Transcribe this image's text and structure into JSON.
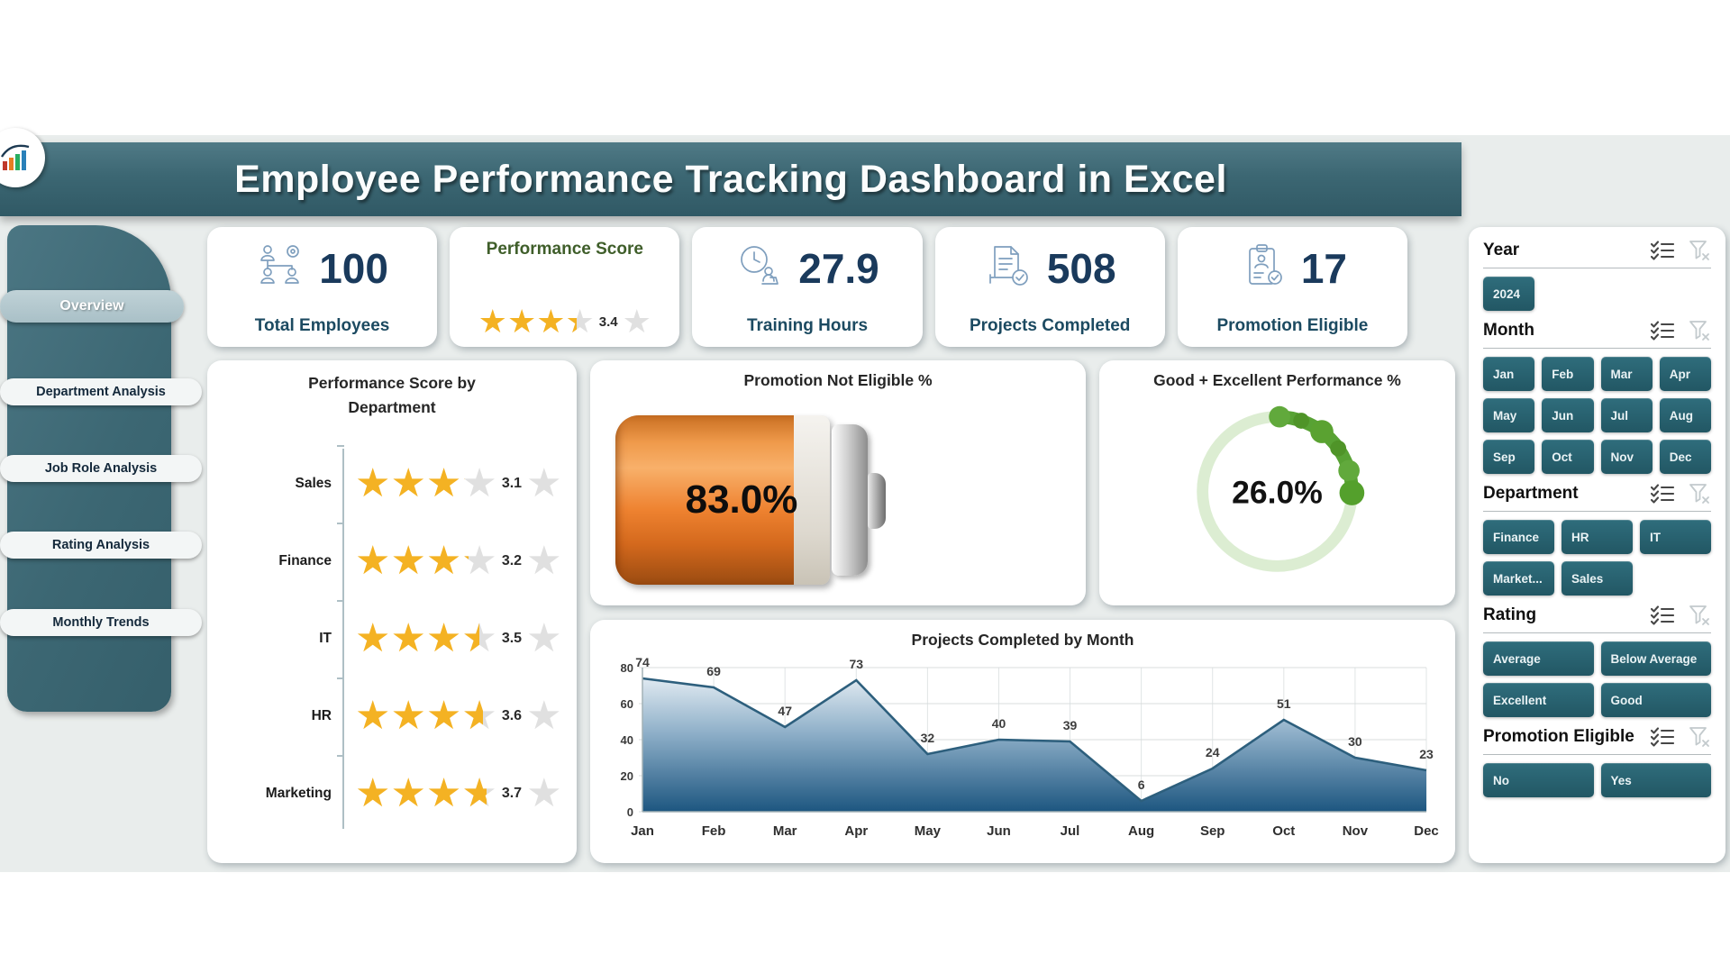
{
  "title": "Employee Performance Tracking Dashboard in Excel",
  "sidebar": {
    "items": [
      {
        "label": "Overview",
        "active": true
      },
      {
        "label": "Department Analysis",
        "active": false
      },
      {
        "label": "Job Role Analysis",
        "active": false
      },
      {
        "label": "Rating Analysis",
        "active": false
      },
      {
        "label": "Monthly Trends",
        "active": false
      }
    ]
  },
  "kpis": [
    {
      "icon": "people-network-icon",
      "value": "100",
      "label": "Total Employees"
    },
    {
      "title": "Performance Score",
      "rating": 3.4
    },
    {
      "icon": "training-clock-icon",
      "value": "27.9",
      "label": "Training Hours"
    },
    {
      "icon": "projects-check-icon",
      "value": "508",
      "label": "Projects Completed"
    },
    {
      "icon": "promotion-clipboard-icon",
      "value": "17",
      "label": "Promotion Eligible"
    }
  ],
  "filters": {
    "sections": [
      {
        "title": "Year",
        "cols": 4,
        "options": [
          "2024"
        ]
      },
      {
        "title": "Month",
        "cols": 4,
        "options": [
          "Jan",
          "Feb",
          "Mar",
          "Apr",
          "May",
          "Jun",
          "Jul",
          "Aug",
          "Sep",
          "Oct",
          "Nov",
          "Dec"
        ]
      },
      {
        "title": "Department",
        "cols": 3,
        "options": [
          "Finance",
          "HR",
          "IT",
          "Market...",
          "Sales"
        ]
      },
      {
        "title": "Rating",
        "cols": 2,
        "options": [
          "Average",
          "Below Average",
          "Excellent",
          "Good"
        ]
      },
      {
        "title": "Promotion Eligible",
        "cols": 2,
        "options": [
          "No",
          "Yes"
        ]
      }
    ]
  },
  "chart_data": [
    {
      "type": "rating-stars",
      "title": "Performance Score by Department",
      "categories": [
        "Sales",
        "Finance",
        "IT",
        "HR",
        "Marketing"
      ],
      "values": [
        3.1,
        3.2,
        3.5,
        3.6,
        3.7
      ],
      "max": 5
    },
    {
      "type": "gauge-battery",
      "title": "Promotion Not Eligible %",
      "value": 83.0,
      "label": "83.0%",
      "fill_color": "#ee8230"
    },
    {
      "type": "donut",
      "title": "Good + Excellent Performance %",
      "value": 26.0,
      "label": "26.0%",
      "ring_color": "#58a234",
      "track_color": "#dcedd2",
      "legend": false
    },
    {
      "type": "area",
      "title": "Projects Completed by Month",
      "categories": [
        "Jan",
        "Feb",
        "Mar",
        "Apr",
        "May",
        "Jun",
        "Jul",
        "Aug",
        "Sep",
        "Oct",
        "Nov",
        "Dec"
      ],
      "values": [
        74,
        69,
        47,
        73,
        32,
        40,
        39,
        6,
        24,
        51,
        30,
        23
      ],
      "xlabel": "",
      "ylabel": "",
      "ylim": [
        0,
        80
      ],
      "yticks": [
        0,
        20,
        40,
        60,
        80
      ],
      "grid": true,
      "legend": false
    }
  ],
  "colors": {
    "title_bar": "#3c6773",
    "sidebar": "#3f6a76",
    "slicer_button": "#276472",
    "star_gold": "#f4b223",
    "battery_orange": "#ee8230",
    "donut_green": "#58a234",
    "area_line": "#2d5f7d",
    "kpi_value": "#1a3a5c"
  }
}
